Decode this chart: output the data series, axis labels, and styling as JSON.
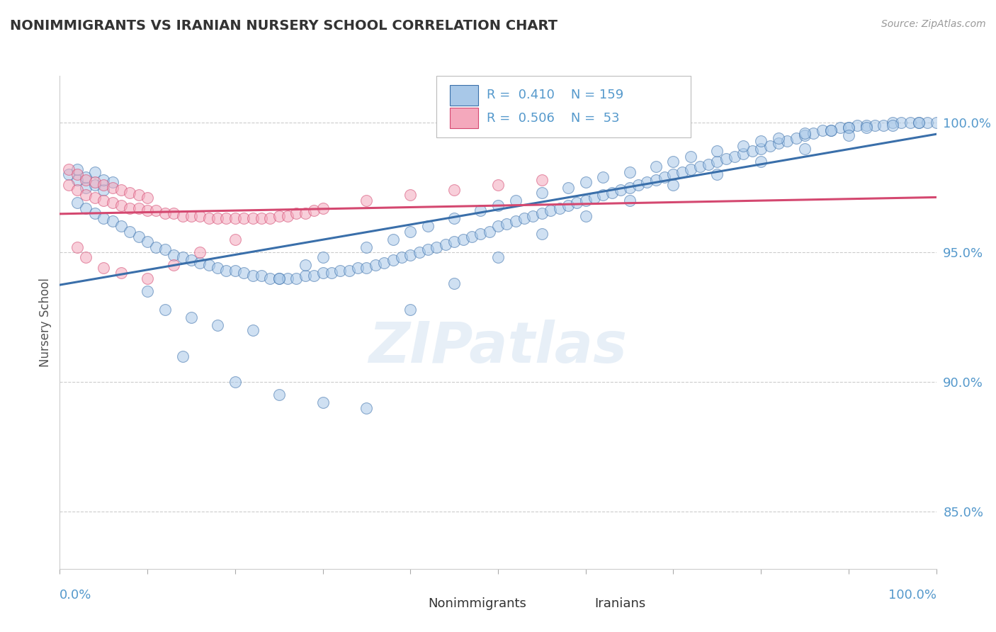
{
  "title": "NONIMMIGRANTS VS IRANIAN NURSERY SCHOOL CORRELATION CHART",
  "source": "Source: ZipAtlas.com",
  "ylabel": "Nursery School",
  "right_ytick_labels": [
    "85.0%",
    "90.0%",
    "95.0%",
    "100.0%"
  ],
  "right_ytick_values": [
    0.85,
    0.9,
    0.95,
    1.0
  ],
  "xlim": [
    0.0,
    1.0
  ],
  "ylim": [
    0.828,
    1.018
  ],
  "blue_color": "#a8c8e8",
  "pink_color": "#f4a8bc",
  "blue_line_color": "#3a6faa",
  "pink_line_color": "#d44870",
  "R_blue": 0.41,
  "N_blue": 159,
  "R_pink": 0.506,
  "N_pink": 53,
  "axis_label_color": "#5599cc",
  "watermark": "ZIPatlas",
  "grid_color": "#cccccc",
  "blue_scatter_x": [
    0.01,
    0.02,
    0.02,
    0.03,
    0.03,
    0.04,
    0.04,
    0.05,
    0.05,
    0.06,
    0.02,
    0.03,
    0.04,
    0.05,
    0.06,
    0.07,
    0.08,
    0.09,
    0.1,
    0.11,
    0.12,
    0.13,
    0.14,
    0.15,
    0.16,
    0.17,
    0.18,
    0.19,
    0.2,
    0.21,
    0.22,
    0.23,
    0.24,
    0.25,
    0.26,
    0.27,
    0.28,
    0.29,
    0.3,
    0.31,
    0.32,
    0.33,
    0.34,
    0.35,
    0.36,
    0.37,
    0.38,
    0.39,
    0.4,
    0.41,
    0.42,
    0.43,
    0.44,
    0.45,
    0.46,
    0.47,
    0.48,
    0.49,
    0.5,
    0.51,
    0.52,
    0.53,
    0.54,
    0.55,
    0.56,
    0.57,
    0.58,
    0.59,
    0.6,
    0.61,
    0.62,
    0.63,
    0.64,
    0.65,
    0.66,
    0.67,
    0.68,
    0.69,
    0.7,
    0.71,
    0.72,
    0.73,
    0.74,
    0.75,
    0.76,
    0.77,
    0.78,
    0.79,
    0.8,
    0.81,
    0.82,
    0.83,
    0.84,
    0.85,
    0.86,
    0.87,
    0.88,
    0.89,
    0.9,
    0.91,
    0.92,
    0.93,
    0.94,
    0.95,
    0.96,
    0.97,
    0.98,
    0.99,
    1.0,
    0.1,
    0.12,
    0.15,
    0.18,
    0.22,
    0.25,
    0.28,
    0.3,
    0.35,
    0.38,
    0.4,
    0.42,
    0.45,
    0.48,
    0.5,
    0.52,
    0.55,
    0.58,
    0.6,
    0.62,
    0.65,
    0.68,
    0.7,
    0.72,
    0.75,
    0.78,
    0.8,
    0.82,
    0.85,
    0.88,
    0.9,
    0.92,
    0.95,
    0.98,
    0.14,
    0.2,
    0.25,
    0.3,
    0.35,
    0.4,
    0.45,
    0.5,
    0.55,
    0.6,
    0.65,
    0.7,
    0.75,
    0.8,
    0.85,
    0.9
  ],
  "blue_scatter_y": [
    0.98,
    0.978,
    0.982,
    0.975,
    0.979,
    0.976,
    0.981,
    0.974,
    0.978,
    0.977,
    0.969,
    0.967,
    0.965,
    0.963,
    0.962,
    0.96,
    0.958,
    0.956,
    0.954,
    0.952,
    0.951,
    0.949,
    0.948,
    0.947,
    0.946,
    0.945,
    0.944,
    0.943,
    0.943,
    0.942,
    0.941,
    0.941,
    0.94,
    0.94,
    0.94,
    0.94,
    0.941,
    0.941,
    0.942,
    0.942,
    0.943,
    0.943,
    0.944,
    0.944,
    0.945,
    0.946,
    0.947,
    0.948,
    0.949,
    0.95,
    0.951,
    0.952,
    0.953,
    0.954,
    0.955,
    0.956,
    0.957,
    0.958,
    0.96,
    0.961,
    0.962,
    0.963,
    0.964,
    0.965,
    0.966,
    0.967,
    0.968,
    0.969,
    0.97,
    0.971,
    0.972,
    0.973,
    0.974,
    0.975,
    0.976,
    0.977,
    0.978,
    0.979,
    0.98,
    0.981,
    0.982,
    0.983,
    0.984,
    0.985,
    0.986,
    0.987,
    0.988,
    0.989,
    0.99,
    0.991,
    0.992,
    0.993,
    0.994,
    0.995,
    0.996,
    0.997,
    0.997,
    0.998,
    0.998,
    0.999,
    0.999,
    0.999,
    0.999,
    1.0,
    1.0,
    1.0,
    1.0,
    1.0,
    1.0,
    0.935,
    0.928,
    0.925,
    0.922,
    0.92,
    0.94,
    0.945,
    0.948,
    0.952,
    0.955,
    0.958,
    0.96,
    0.963,
    0.966,
    0.968,
    0.97,
    0.973,
    0.975,
    0.977,
    0.979,
    0.981,
    0.983,
    0.985,
    0.987,
    0.989,
    0.991,
    0.993,
    0.994,
    0.996,
    0.997,
    0.998,
    0.998,
    0.999,
    1.0,
    0.91,
    0.9,
    0.895,
    0.892,
    0.89,
    0.928,
    0.938,
    0.948,
    0.957,
    0.964,
    0.97,
    0.976,
    0.98,
    0.985,
    0.99,
    0.995
  ],
  "pink_scatter_x": [
    0.01,
    0.01,
    0.02,
    0.02,
    0.03,
    0.03,
    0.04,
    0.04,
    0.05,
    0.05,
    0.06,
    0.06,
    0.07,
    0.07,
    0.08,
    0.08,
    0.09,
    0.09,
    0.1,
    0.1,
    0.11,
    0.12,
    0.13,
    0.14,
    0.15,
    0.16,
    0.17,
    0.18,
    0.19,
    0.2,
    0.21,
    0.22,
    0.23,
    0.24,
    0.25,
    0.26,
    0.27,
    0.28,
    0.29,
    0.3,
    0.35,
    0.4,
    0.45,
    0.5,
    0.55,
    0.02,
    0.03,
    0.05,
    0.07,
    0.1,
    0.13,
    0.16,
    0.2
  ],
  "pink_scatter_y": [
    0.982,
    0.976,
    0.98,
    0.974,
    0.978,
    0.972,
    0.977,
    0.971,
    0.976,
    0.97,
    0.975,
    0.969,
    0.974,
    0.968,
    0.973,
    0.967,
    0.972,
    0.967,
    0.971,
    0.966,
    0.966,
    0.965,
    0.965,
    0.964,
    0.964,
    0.964,
    0.963,
    0.963,
    0.963,
    0.963,
    0.963,
    0.963,
    0.963,
    0.963,
    0.964,
    0.964,
    0.965,
    0.965,
    0.966,
    0.967,
    0.97,
    0.972,
    0.974,
    0.976,
    0.978,
    0.952,
    0.948,
    0.944,
    0.942,
    0.94,
    0.945,
    0.95,
    0.955
  ]
}
